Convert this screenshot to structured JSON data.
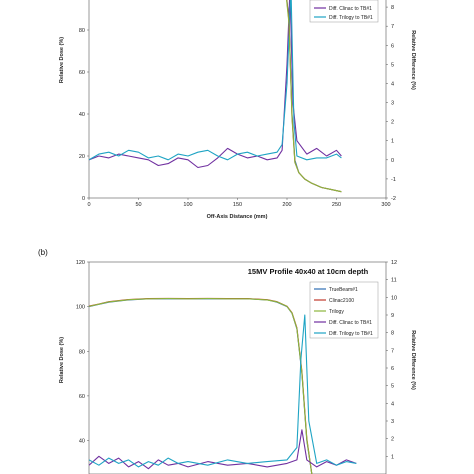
{
  "chart_data": [
    {
      "type": "line",
      "title": "",
      "xlabel": "Off-Axis Distance (mm)",
      "ylabel": "Relative Dose (%)",
      "y2label": "Relative Difference (%)",
      "xlim": [
        0,
        300
      ],
      "ylim": [
        0,
        100
      ],
      "y2lim": [
        -2,
        9
      ],
      "xticks": [
        "0",
        "50",
        "100",
        "150",
        "200",
        "250",
        "300"
      ],
      "yticks": [
        "0",
        "20",
        "40",
        "60",
        "80"
      ],
      "y2ticks": [
        "-2",
        "-1",
        "0",
        "1",
        "2",
        "3",
        "4",
        "5",
        "6",
        "7",
        "8"
      ],
      "legend_position": "top-right",
      "legend": [
        "Diff. Clinac to TB#1",
        "Diff. Trilogy to TB#1"
      ],
      "series": [
        {
          "name": "Diff. Clinac to TB#1",
          "axis": "right",
          "color": "#7030A0",
          "x": [
            0,
            10,
            20,
            30,
            40,
            50,
            60,
            70,
            80,
            90,
            100,
            110,
            120,
            130,
            140,
            150,
            160,
            170,
            180,
            190,
            195,
            200,
            203,
            206,
            210,
            220,
            230,
            240,
            250,
            255
          ],
          "y": [
            0.0,
            0.2,
            0.1,
            0.3,
            0.2,
            0.1,
            0.0,
            -0.3,
            -0.2,
            0.1,
            0.0,
            -0.4,
            -0.3,
            0.1,
            0.6,
            0.3,
            0.1,
            0.2,
            0.0,
            0.1,
            0.5,
            5.0,
            9.0,
            3.0,
            1.0,
            0.3,
            0.6,
            0.2,
            0.5,
            0.2
          ]
        },
        {
          "name": "Diff. Trilogy to TB#1",
          "axis": "right",
          "color": "#1FA4C4",
          "x": [
            0,
            10,
            20,
            30,
            40,
            50,
            60,
            70,
            80,
            90,
            100,
            110,
            120,
            130,
            140,
            150,
            160,
            170,
            180,
            190,
            195,
            200,
            204,
            207,
            210,
            220,
            230,
            240,
            250,
            255
          ],
          "y": [
            0.0,
            0.3,
            0.4,
            0.2,
            0.5,
            0.4,
            0.1,
            0.2,
            0.0,
            0.3,
            0.2,
            0.4,
            0.5,
            0.2,
            0.0,
            0.3,
            0.4,
            0.2,
            0.3,
            0.4,
            0.8,
            4.0,
            9.0,
            2.0,
            0.2,
            0.0,
            0.1,
            0.1,
            0.3,
            0.1
          ]
        },
        {
          "name": "",
          "axis": "left",
          "color": "#2E6DB4",
          "x": [
            196,
            199,
            202,
            205,
            208,
            212,
            218,
            225,
            235,
            245,
            255
          ],
          "y": [
            100,
            98,
            85,
            40,
            18,
            12,
            9,
            7,
            5,
            4,
            3
          ]
        },
        {
          "name": "",
          "axis": "left",
          "color": "#C0392B",
          "x": [
            196,
            199,
            202,
            205,
            208,
            212,
            218,
            225,
            235,
            245,
            255
          ],
          "y": [
            100,
            98,
            84,
            39,
            17,
            12,
            9,
            7,
            5,
            4,
            3
          ]
        },
        {
          "name": "",
          "axis": "left",
          "color": "#8DB63C",
          "x": [
            196,
            199,
            202,
            205,
            208,
            212,
            218,
            225,
            235,
            245,
            255
          ],
          "y": [
            100,
            97,
            83,
            38,
            17,
            12,
            9,
            7,
            5,
            4,
            3
          ]
        }
      ]
    },
    {
      "type": "line",
      "title": "15MV Profile 40x40 at 10cm depth",
      "xlabel": "",
      "ylabel": "Relative Dose (%)",
      "y2label": "Relative Difference (%)",
      "xlim": [
        0,
        300
      ],
      "ylim": [
        25,
        120
      ],
      "y2lim": [
        0,
        12
      ],
      "yticks": [
        "40",
        "60",
        "80",
        "100",
        "120"
      ],
      "y2ticks": [
        "1",
        "2",
        "3",
        "4",
        "5",
        "6",
        "7",
        "8",
        "9",
        "10",
        "11",
        "12"
      ],
      "legend_position": "top-right",
      "legend": [
        "TrueBeam#1",
        "Clinac2100",
        "Trilogy",
        "Diff. Clinac to TB#1",
        "Diff. Trilogy to TB#1"
      ],
      "series": [
        {
          "name": "TrueBeam#1",
          "axis": "left",
          "color": "#2E6DB4",
          "x": [
            0,
            10,
            20,
            40,
            60,
            80,
            100,
            120,
            140,
            160,
            180,
            190,
            200,
            205,
            210,
            215,
            220,
            225
          ],
          "y": [
            100,
            101,
            102,
            103,
            103.5,
            103.5,
            103.5,
            103.5,
            103.5,
            103.5,
            103,
            102,
            100,
            97,
            90,
            70,
            40,
            25
          ]
        },
        {
          "name": "Clinac2100",
          "axis": "left",
          "color": "#C0392B",
          "x": [
            0,
            10,
            20,
            40,
            60,
            80,
            100,
            120,
            140,
            160,
            180,
            190,
            200,
            205,
            210,
            215,
            220,
            225
          ],
          "y": [
            100.3,
            101.2,
            102.2,
            103.2,
            103.6,
            103.7,
            103.6,
            103.7,
            103.6,
            103.6,
            103.1,
            102.2,
            100.2,
            97.3,
            90.5,
            71,
            41,
            25
          ]
        },
        {
          "name": "Trilogy",
          "axis": "left",
          "color": "#8DB63C",
          "x": [
            0,
            10,
            20,
            40,
            60,
            80,
            100,
            120,
            140,
            160,
            180,
            190,
            200,
            205,
            210,
            215,
            220,
            225
          ],
          "y": [
            100.1,
            101.1,
            102.1,
            103.1,
            103.5,
            103.6,
            103.5,
            103.6,
            103.5,
            103.5,
            103,
            102.1,
            100.1,
            97.1,
            90.2,
            70.5,
            40.5,
            25
          ]
        },
        {
          "name": "Diff. Clinac to TB#1",
          "axis": "right",
          "color": "#7030A0",
          "x": [
            0,
            10,
            20,
            30,
            40,
            50,
            60,
            70,
            80,
            90,
            100,
            120,
            140,
            160,
            180,
            200,
            210,
            215,
            220,
            230,
            240,
            250,
            260,
            270
          ],
          "y": [
            0.5,
            1.0,
            0.6,
            0.9,
            0.4,
            0.7,
            0.3,
            0.8,
            0.5,
            0.6,
            0.4,
            0.7,
            0.5,
            0.6,
            0.4,
            0.6,
            0.8,
            2.5,
            0.8,
            0.4,
            0.7,
            0.5,
            0.8,
            0.6
          ]
        },
        {
          "name": "Diff. Trilogy to TB#1",
          "axis": "right",
          "color": "#1FA4C4",
          "x": [
            0,
            10,
            20,
            30,
            40,
            50,
            60,
            70,
            80,
            90,
            100,
            120,
            140,
            160,
            180,
            200,
            210,
            214,
            218,
            222,
            230,
            240,
            250,
            260,
            270
          ],
          "y": [
            0.8,
            0.5,
            0.9,
            0.6,
            0.8,
            0.4,
            0.7,
            0.5,
            0.9,
            0.6,
            0.7,
            0.5,
            0.8,
            0.6,
            0.7,
            0.8,
            1.5,
            6.5,
            9.0,
            3.0,
            0.6,
            0.8,
            0.5,
            0.7,
            0.6
          ]
        }
      ]
    }
  ],
  "panel_label": "(b)"
}
